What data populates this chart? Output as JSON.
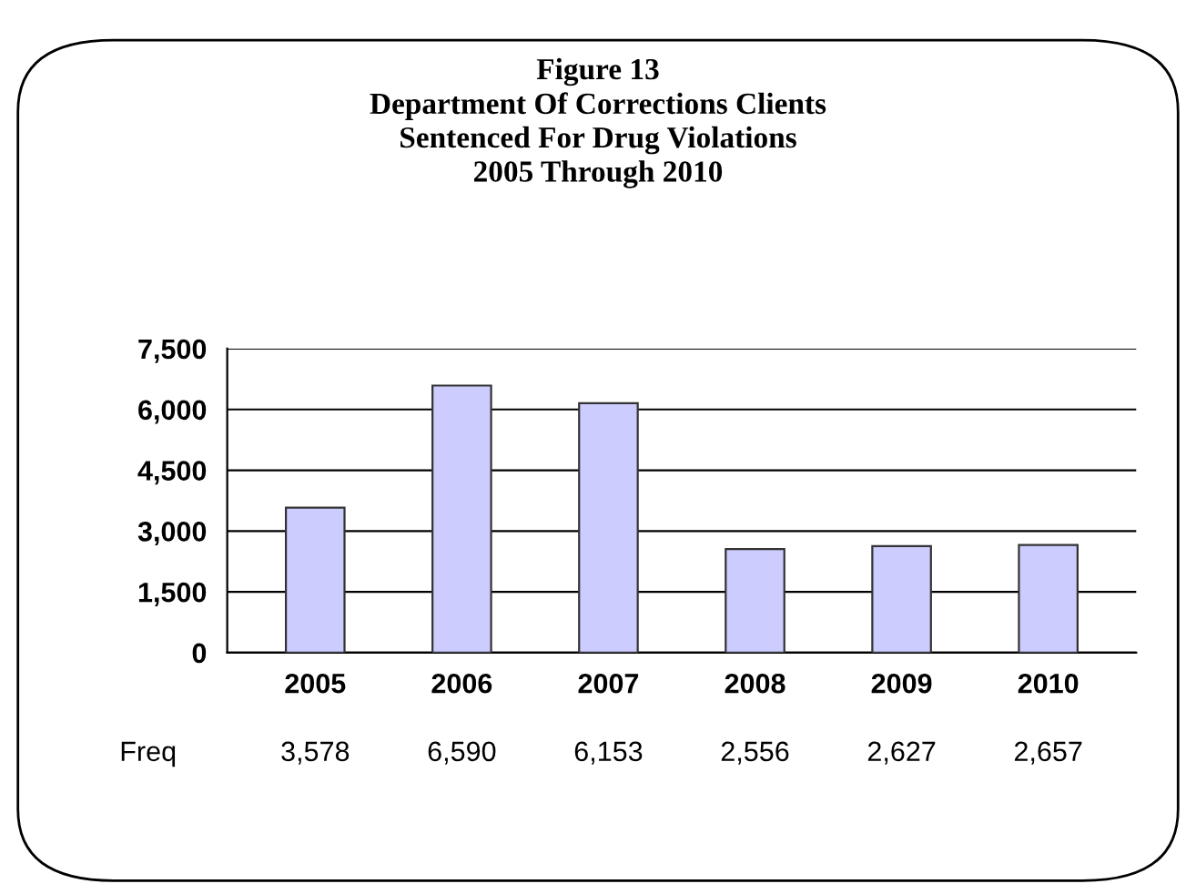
{
  "chart_data": {
    "type": "bar",
    "title": "Figure 13\nDepartment Of Corrections Clients\nSentenced For Drug Violations\n2005 Through 2010",
    "categories": [
      "2005",
      "2006",
      "2007",
      "2008",
      "2009",
      "2010"
    ],
    "values": [
      3578,
      6590,
      6153,
      2556,
      2627,
      2657
    ],
    "value_labels": [
      "3,578",
      "6,590",
      "6,153",
      "2,556",
      "2,627",
      "2,657"
    ],
    "color": "#ccccff",
    "ylim": [
      0,
      7500
    ],
    "yticks": [
      {
        "value": 0,
        "label": "0"
      },
      {
        "value": 1500,
        "label": "1,500"
      },
      {
        "value": 3000,
        "label": "3,000"
      },
      {
        "value": 4500,
        "label": "4,500"
      },
      {
        "value": 6000,
        "label": "6,000"
      },
      {
        "value": 7500,
        "label": "7,500"
      }
    ],
    "grid": "y",
    "annotations": [
      "Freq"
    ]
  }
}
